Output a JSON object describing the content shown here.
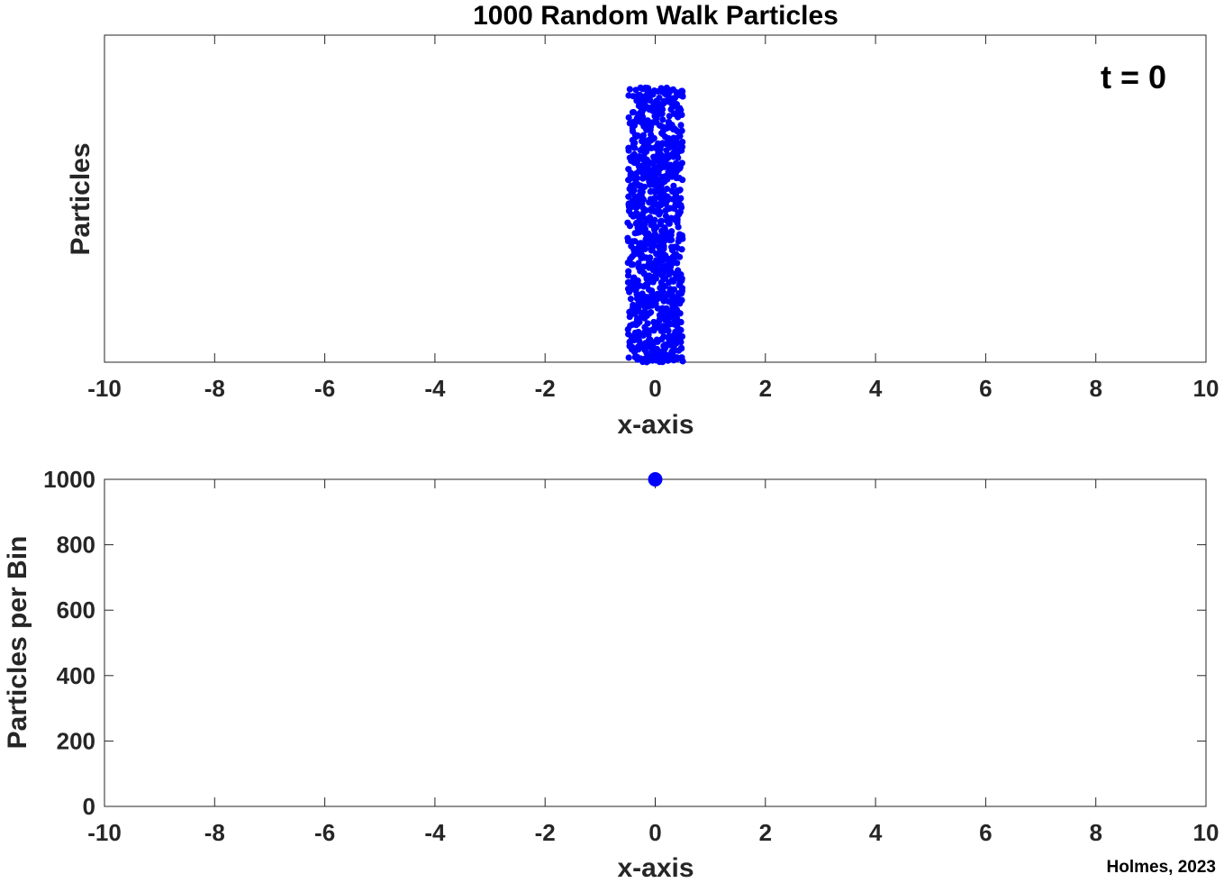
{
  "figure": {
    "title": "1000 Random Walk Particles",
    "credit": "Holmes, 2023",
    "marker_color": "#0000ff",
    "axis_color": "#262626"
  },
  "chart_data": [
    {
      "type": "scatter",
      "title": "1000 Random Walk Particles",
      "annotation": "t = 0",
      "xlabel": "x-axis",
      "ylabel": "Particles",
      "xlim": [
        -10,
        10
      ],
      "ylim": [
        0,
        1
      ],
      "xticks": [
        "-10",
        "-8",
        "-6",
        "-4",
        "-2",
        "0",
        "2",
        "4",
        "6",
        "8",
        "10"
      ],
      "yticks": [],
      "grid": false,
      "legend": "none",
      "series": [
        {
          "particle_count": 1000,
          "x_range": [
            -0.5,
            0.5
          ],
          "y_range": [
            0,
            0.84
          ]
        }
      ]
    },
    {
      "type": "scatter",
      "xlabel": "x-axis",
      "ylabel": "Particles per Bin",
      "xlim": [
        -10,
        10
      ],
      "ylim": [
        0,
        1000
      ],
      "xticks": [
        "-10",
        "-8",
        "-6",
        "-4",
        "-2",
        "0",
        "2",
        "4",
        "6",
        "8",
        "10"
      ],
      "yticks": [
        "0",
        "200",
        "400",
        "600",
        "800",
        "1000"
      ],
      "grid": false,
      "legend": "none",
      "series": [
        {
          "x": [
            0
          ],
          "y": [
            1000
          ]
        }
      ]
    }
  ]
}
